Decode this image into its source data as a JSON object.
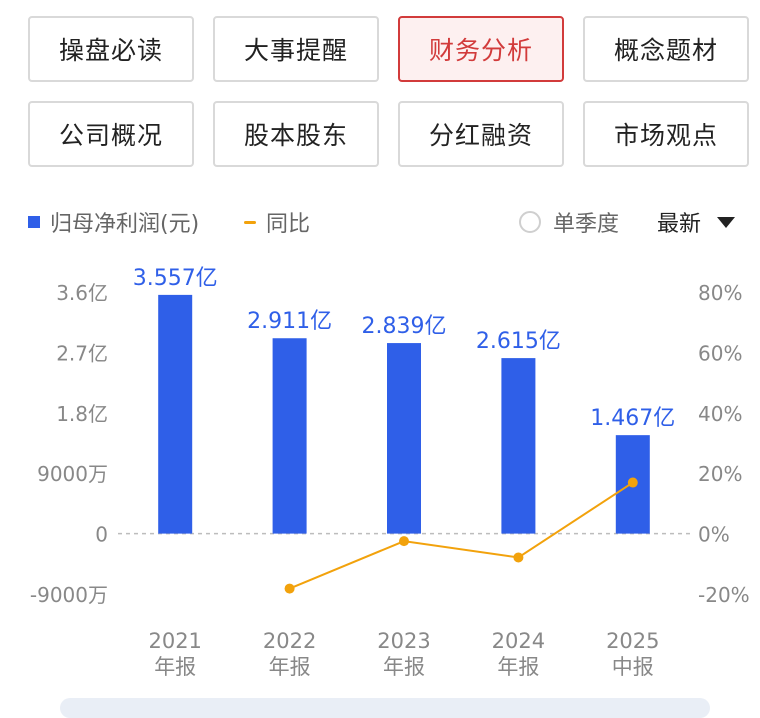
{
  "tabs": [
    {
      "label": "操盘必读",
      "active": false
    },
    {
      "label": "大事提醒",
      "active": false
    },
    {
      "label": "财务分析",
      "active": true
    },
    {
      "label": "概念题材",
      "active": false
    },
    {
      "label": "公司概况",
      "active": false
    },
    {
      "label": "股本股东",
      "active": false
    },
    {
      "label": "分红融资",
      "active": false
    },
    {
      "label": "市场观点",
      "active": false
    }
  ],
  "controls": {
    "single_quarter_label": "单季度",
    "sort_label": "最新"
  },
  "colors": {
    "bar": "#2f5fe8",
    "line": "#f2a20c",
    "active_tab": "#d23b3b",
    "bar_label": "#2f5fe8",
    "axis_text": "#888888"
  },
  "chart_data": {
    "type": "bar",
    "categories": [
      {
        "year": "2021",
        "period": "年报"
      },
      {
        "year": "2022",
        "period": "年报"
      },
      {
        "year": "2023",
        "period": "年报"
      },
      {
        "year": "2024",
        "period": "年报"
      },
      {
        "year": "2025",
        "period": "中报"
      }
    ],
    "series": [
      {
        "name": "归母净利润(元)",
        "kind": "bar",
        "axis": "left",
        "values": [
          355700000,
          291100000,
          283900000,
          261500000,
          146700000
        ],
        "labels": [
          "3.557亿",
          "2.911亿",
          "2.839亿",
          "2.615亿",
          "1.467亿"
        ]
      },
      {
        "name": "同比",
        "kind": "line",
        "axis": "right",
        "values": [
          null,
          -18.2,
          -2.5,
          -7.9,
          16.9
        ]
      }
    ],
    "y_left": {
      "range": [
        -90000000,
        360000000
      ],
      "ticks": [
        {
          "value": 360000000,
          "label": "3.6亿"
        },
        {
          "value": 270000000,
          "label": "2.7亿"
        },
        {
          "value": 180000000,
          "label": "1.8亿"
        },
        {
          "value": 90000000,
          "label": "9000万"
        },
        {
          "value": 0,
          "label": "0"
        },
        {
          "value": -90000000,
          "label": "-9000万"
        }
      ]
    },
    "y_right": {
      "range": [
        -20,
        80
      ],
      "ticks": [
        {
          "value": 80,
          "label": "80%"
        },
        {
          "value": 60,
          "label": "60%"
        },
        {
          "value": 40,
          "label": "40%"
        },
        {
          "value": 20,
          "label": "20%"
        },
        {
          "value": 0,
          "label": "0%"
        },
        {
          "value": -20,
          "label": "-20%"
        }
      ]
    },
    "zero_line": "dashed",
    "legend_position": "top-left"
  }
}
